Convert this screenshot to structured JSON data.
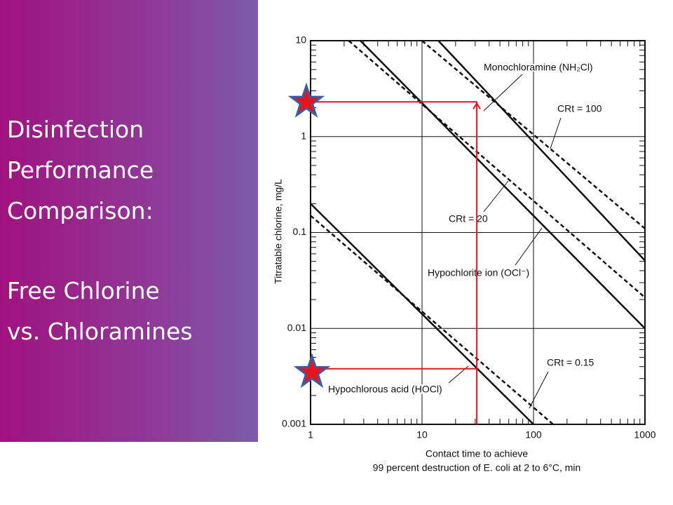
{
  "slide": {
    "heading_lines": [
      "Disinfection",
      "Performance",
      "Comparison:"
    ],
    "subheading_lines": [
      "Free Chlorine",
      "vs. Chloramines"
    ]
  },
  "chart_data": {
    "type": "line",
    "xlabel_lines": [
      "Contact time to achieve",
      "99 percent destruction of E. coli at 2 to 6°C, min"
    ],
    "ylabel": "Titratable chlorine, mg/L",
    "xscale": "log",
    "yscale": "log",
    "grid": true,
    "xlim": [
      1,
      1000
    ],
    "xticks": [
      1,
      10,
      100,
      1000
    ],
    "ylim": [
      0.001,
      10
    ],
    "yticks": [
      0.001,
      0.01,
      0.1,
      1,
      10
    ],
    "series": [
      {
        "name": "Monochloramine (NH₂Cl)",
        "color": "#111111",
        "dashed": false,
        "x": [
          14,
          1000
        ],
        "values": [
          10,
          0.051
        ]
      },
      {
        "name": "CRt = 100",
        "color": "#111111",
        "dashed": true,
        "x": [
          10,
          1000
        ],
        "values": [
          10,
          0.11
        ]
      },
      {
        "name": "Hypochlorite ion (OCl⁻)",
        "color": "#111111",
        "dashed": false,
        "x": [
          2.8,
          1000
        ],
        "values": [
          10,
          0.01
        ]
      },
      {
        "name": "CRt = 20",
        "color": "#111111",
        "dashed": true,
        "x": [
          2.2,
          1000
        ],
        "values": [
          10,
          0.021
        ]
      },
      {
        "name": "Hypochlorous acid (HOCl)",
        "color": "#111111",
        "dashed": false,
        "x": [
          1,
          100
        ],
        "values": [
          0.2,
          0.001
        ]
      },
      {
        "name": "CRt = 0.15",
        "color": "#111111",
        "dashed": true,
        "x": [
          1,
          150
        ],
        "values": [
          0.15,
          0.001
        ]
      },
      {
        "color": "#e8141c",
        "dashed": false,
        "marker": "star",
        "x": [
          1,
          31,
          31
        ],
        "values": [
          2.3,
          2.3,
          0.001
        ]
      },
      {
        "color": "#e8141c",
        "dashed": false,
        "marker": "star",
        "x": [
          1,
          31
        ],
        "values": [
          0.0038,
          0.0038
        ]
      }
    ]
  }
}
